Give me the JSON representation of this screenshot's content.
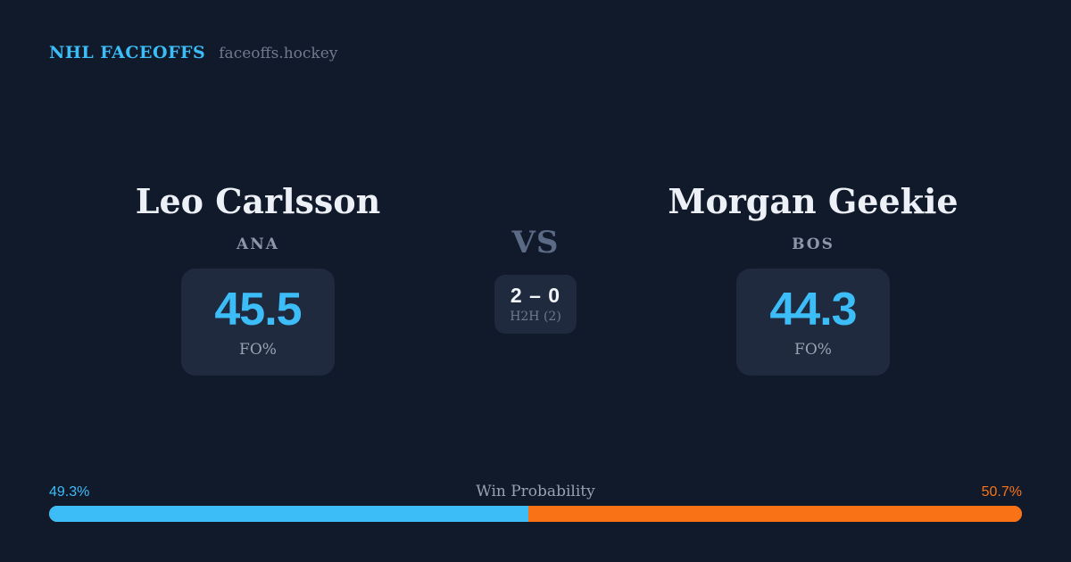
{
  "theme": {
    "background": "#111a2b",
    "panel": "#1f2a3e",
    "accent_blue": "#3dbdf8",
    "accent_orange": "#f97316",
    "text_primary": "#edf1f7",
    "text_muted": "#8c97ab"
  },
  "header": {
    "brand": "NHL FACEOFFS",
    "site": "faceoffs.hockey"
  },
  "matchup": {
    "vs_label": "VS",
    "h2h": {
      "score": "2 – 0",
      "label": "H2H (2)"
    },
    "players": [
      {
        "name": "Leo Carlsson",
        "team": "ANA",
        "fo_pct": "45.5",
        "stat_label": "FO%"
      },
      {
        "name": "Morgan Geekie",
        "team": "BOS",
        "fo_pct": "44.3",
        "stat_label": "FO%"
      }
    ]
  },
  "win_probability": {
    "label": "Win Probability",
    "left_pct": "49.3%",
    "right_pct": "50.7%",
    "left_value": 49.3,
    "right_value": 50.7
  }
}
